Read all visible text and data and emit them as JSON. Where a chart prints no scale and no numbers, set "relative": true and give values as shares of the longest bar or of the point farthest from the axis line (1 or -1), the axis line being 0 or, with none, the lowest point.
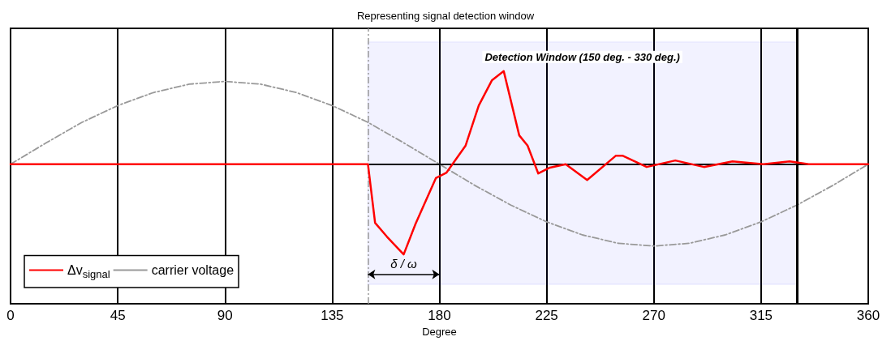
{
  "chart_data": {
    "type": "line",
    "title": "Representing signal detection window",
    "xlabel": "Degree",
    "relative": true,
    "xlim": [
      0,
      360
    ],
    "xticks": [
      0,
      45,
      90,
      135,
      180,
      225,
      270,
      315,
      360
    ],
    "grid": "x",
    "legend": "bottom left",
    "marker": "none",
    "series": [
      {
        "name": "Δv$_{signal}$",
        "color": "#ff0000",
        "line_style": "solid",
        "x": [
          0,
          150,
          153,
          158,
          165,
          170,
          178.5,
          183,
          191,
          196.5,
          202,
          207,
          213.5,
          217,
          221.5,
          226,
          233,
          242,
          254,
          257,
          267,
          279,
          291,
          303,
          316,
          327,
          335,
          360
        ],
        "values": [
          0,
          0,
          -0.63,
          -0.78,
          -0.97,
          -0.64,
          -0.15,
          -0.09,
          0.2,
          0.63,
          0.9,
          1,
          0.31,
          0.2,
          -0.1,
          -0.04,
          0,
          -0.17,
          0.09,
          0.09,
          -0.03,
          0.04,
          -0.03,
          0.03,
          0,
          0.03,
          0,
          0
        ]
      },
      {
        "name": "carrier voltage",
        "color": "#999999",
        "line_style": "dashed",
        "x": [
          0,
          15,
          30,
          45,
          60,
          75,
          90,
          105,
          120,
          135,
          150,
          165,
          180,
          195,
          210,
          225,
          240,
          255,
          270,
          285,
          300,
          315,
          330,
          345,
          360
        ],
        "values": [
          0,
          0.23,
          0.45,
          0.63,
          0.77,
          0.86,
          0.89,
          0.86,
          0.77,
          0.63,
          0.45,
          0.23,
          0,
          -0.23,
          -0.44,
          -0.62,
          -0.76,
          -0.85,
          -0.88,
          -0.85,
          -0.76,
          -0.62,
          -0.44,
          -0.23,
          0
        ]
      }
    ],
    "ref_lines": [
      {
        "axis": "y",
        "value": 0,
        "color": "#000000",
        "line_style": "solid"
      },
      {
        "axis": "x",
        "value": 150,
        "color": "#999999",
        "line_style": "dashed"
      },
      {
        "axis": "x",
        "value": 330,
        "color": "#000000",
        "line_style": "solid"
      }
    ],
    "bands": [
      {
        "axis": "x",
        "from": 150,
        "to": 330,
        "label": "Detection Window (150 deg. - 330 deg.)",
        "color": "#0000ff"
      }
    ],
    "annotations": [
      "δ / ω"
    ]
  }
}
